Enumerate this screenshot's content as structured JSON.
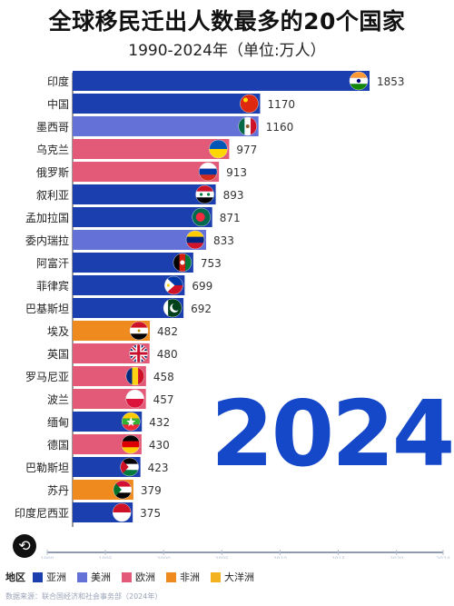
{
  "title": "全球移民迁出人数最多的20个国家",
  "subtitle": "1990-2024年（单位:万人）",
  "year_display": "2024",
  "legend": {
    "title": "地区",
    "items": [
      {
        "label": "亚洲",
        "color": "#1c3fb0"
      },
      {
        "label": "美洲",
        "color": "#6472d8"
      },
      {
        "label": "欧洲",
        "color": "#e35a78"
      },
      {
        "label": "非洲",
        "color": "#ee8a1e"
      },
      {
        "label": "大洋洲",
        "color": "#f3b321"
      }
    ]
  },
  "source": "数据来源：联合国经济和社会事务部（2024年）",
  "chart_data": {
    "type": "bar",
    "orientation": "horizontal",
    "xlim": [
      1990,
      2024
    ],
    "xticks": [
      "1990",
      "1995",
      "2000",
      "2005",
      "2010",
      "2015",
      "2020",
      "2024"
    ],
    "max_value": 1853,
    "categories": [
      "印度",
      "中国",
      "墨西哥",
      "乌克兰",
      "俄罗斯",
      "叙利亚",
      "孟加拉国",
      "委内瑞拉",
      "阿富汗",
      "菲律宾",
      "巴基斯坦",
      "埃及",
      "英国",
      "罗马尼亚",
      "波兰",
      "缅甸",
      "德国",
      "巴勒斯坦",
      "苏丹",
      "印度尼西亚"
    ],
    "values": [
      1853,
      1170,
      1160,
      977,
      913,
      893,
      871,
      833,
      753,
      699,
      692,
      482,
      480,
      458,
      457,
      432,
      430,
      423,
      379,
      375
    ],
    "regions": [
      "亚洲",
      "亚洲",
      "美洲",
      "欧洲",
      "欧洲",
      "亚洲",
      "亚洲",
      "美洲",
      "亚洲",
      "亚洲",
      "亚洲",
      "非洲",
      "欧洲",
      "欧洲",
      "欧洲",
      "亚洲",
      "欧洲",
      "亚洲",
      "非洲",
      "亚洲"
    ],
    "flags": [
      "india-flag",
      "china-flag",
      "mexico-flag",
      "ukraine-flag",
      "russia-flag",
      "syria-flag",
      "bangladesh-flag",
      "venezuela-flag",
      "afghanistan-flag",
      "philippines-flag",
      "pakistan-flag",
      "egypt-flag",
      "uk-flag",
      "romania-flag",
      "poland-flag",
      "myanmar-flag",
      "germany-flag",
      "palestine-flag",
      "sudan-flag",
      "indonesia-flag"
    ]
  }
}
